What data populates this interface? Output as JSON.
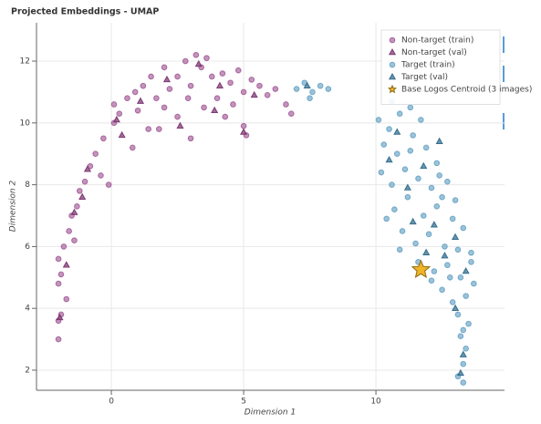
{
  "chart_data": {
    "type": "scatter",
    "title": "Projected Embeddings - UMAP",
    "x_label": "Dimension 1",
    "y_label": "Dimension 2",
    "xlim": [
      -2.83,
      14.86
    ],
    "ylim": [
      1.35,
      13.24
    ],
    "xticks": [
      0,
      5,
      10
    ],
    "yticks": [
      2,
      4,
      6,
      8,
      10,
      12
    ],
    "grid": true,
    "legend": "top-right",
    "series": [
      {
        "name": "Non-target (train)",
        "color": "#9b4f8f",
        "marker": "circle",
        "x": [
          -2,
          -2,
          -1.9,
          -2,
          -1.9,
          -2,
          -1.8,
          -1.6,
          -1.5,
          -1.3,
          -1.2,
          -1,
          -0.8,
          -0.6,
          -0.4,
          -0.3,
          0.1,
          0.1,
          0.3,
          0.6,
          0.9,
          1,
          1.2,
          1.5,
          1.7,
          2,
          2.2,
          2.5,
          2.8,
          3,
          3.2,
          3.4,
          3.6,
          3.8,
          4,
          4.2,
          4.5,
          4.8,
          5,
          5.3,
          5.6,
          5.9,
          6.2,
          6.6,
          1.8,
          2.5,
          3,
          3.5,
          4.3,
          5,
          5.1,
          0.8,
          1.4,
          -0.1,
          -1.4,
          -1.7,
          2,
          2.9,
          6.8,
          4.6
        ],
        "y": [
          3,
          3.6,
          3.8,
          4.8,
          5.1,
          5.6,
          6,
          6.5,
          7,
          7.3,
          7.8,
          8.1,
          8.6,
          9,
          8.3,
          9.5,
          10,
          10.6,
          10.3,
          10.8,
          11,
          10.4,
          11.2,
          11.5,
          10.8,
          11.8,
          11.1,
          11.5,
          12,
          11.2,
          12.2,
          11.8,
          12.1,
          11.5,
          10.8,
          11.6,
          11.3,
          11.7,
          11,
          11.4,
          11.2,
          10.9,
          11.1,
          10.6,
          9.8,
          10.2,
          9.5,
          10.5,
          10.2,
          9.9,
          9.6,
          9.2,
          9.8,
          8,
          6.2,
          4.3,
          10.5,
          10.8,
          10.3,
          10.6
        ]
      },
      {
        "name": "Non-target (val)",
        "color": "#7e3a74",
        "marker": "triangle",
        "x": [
          -1.95,
          -1.7,
          -1.4,
          -0.9,
          0.2,
          1.1,
          2.1,
          3.3,
          4.1,
          5.4,
          5,
          2.6,
          0.4,
          -1.1,
          3.9
        ],
        "y": [
          3.7,
          5.4,
          7.1,
          8.5,
          10.1,
          10.7,
          11.4,
          11.9,
          11.2,
          10.9,
          9.7,
          9.9,
          9.6,
          7.6,
          10.4
        ]
      },
      {
        "name": "Target (train)",
        "color": "#5a9bc0",
        "marker": "circle",
        "x": [
          7,
          7.3,
          7.6,
          7.9,
          8.2,
          7.5,
          10.1,
          10.5,
          10.9,
          11.3,
          10.3,
          10.8,
          11.4,
          11.9,
          12.3,
          10.2,
          10.6,
          11.1,
          11.6,
          12.1,
          12.7,
          13,
          10.7,
          11.2,
          11.8,
          12.3,
          12.9,
          13.3,
          11,
          11.5,
          12,
          12.6,
          13.1,
          13.6,
          11.6,
          12.2,
          12.7,
          13.2,
          13.7,
          12.5,
          12.9,
          13.4,
          13.1,
          13.5,
          13.2,
          13.4,
          13.3,
          13.1,
          13.3,
          10.4,
          11.3,
          12.5,
          13.6,
          12.8,
          13.3,
          10.6,
          11.7,
          12.4,
          10.9,
          12.1
        ],
        "y": [
          11.1,
          11.3,
          11,
          11.2,
          11.1,
          10.8,
          10.1,
          9.8,
          10.3,
          10.5,
          9.3,
          9,
          9.6,
          9.2,
          8.7,
          8.4,
          8,
          8.5,
          8.2,
          7.9,
          8.1,
          7.5,
          7.2,
          7.6,
          7,
          7.3,
          6.9,
          6.6,
          6.5,
          6.1,
          6.4,
          6,
          5.9,
          5.5,
          5.5,
          5.2,
          5.4,
          5,
          4.8,
          4.6,
          4.2,
          4.4,
          3.8,
          3.5,
          3.1,
          2.7,
          2.2,
          1.8,
          1.6,
          6.9,
          9.1,
          7.6,
          5.8,
          5,
          3.3,
          10.7,
          10.1,
          8.3,
          5.9,
          4.9
        ]
      },
      {
        "name": "Target (val)",
        "color": "#356f8f",
        "marker": "triangle",
        "x": [
          7.4,
          10.5,
          11.2,
          11.8,
          12.2,
          13,
          11.4,
          12.6,
          13.4,
          13,
          13.3,
          12.4,
          10.8,
          13.2,
          11.9
        ],
        "y": [
          11.2,
          8.8,
          7.9,
          8.6,
          6.7,
          6.3,
          6.8,
          5.7,
          5.2,
          4,
          2.5,
          9.4,
          9.7,
          1.9,
          5.8
        ]
      },
      {
        "name": "Base Logos Centroid (3 images)",
        "color": "#f0b429",
        "marker": "star",
        "x": [
          11.7
        ],
        "y": [
          5.25
        ]
      }
    ]
  }
}
